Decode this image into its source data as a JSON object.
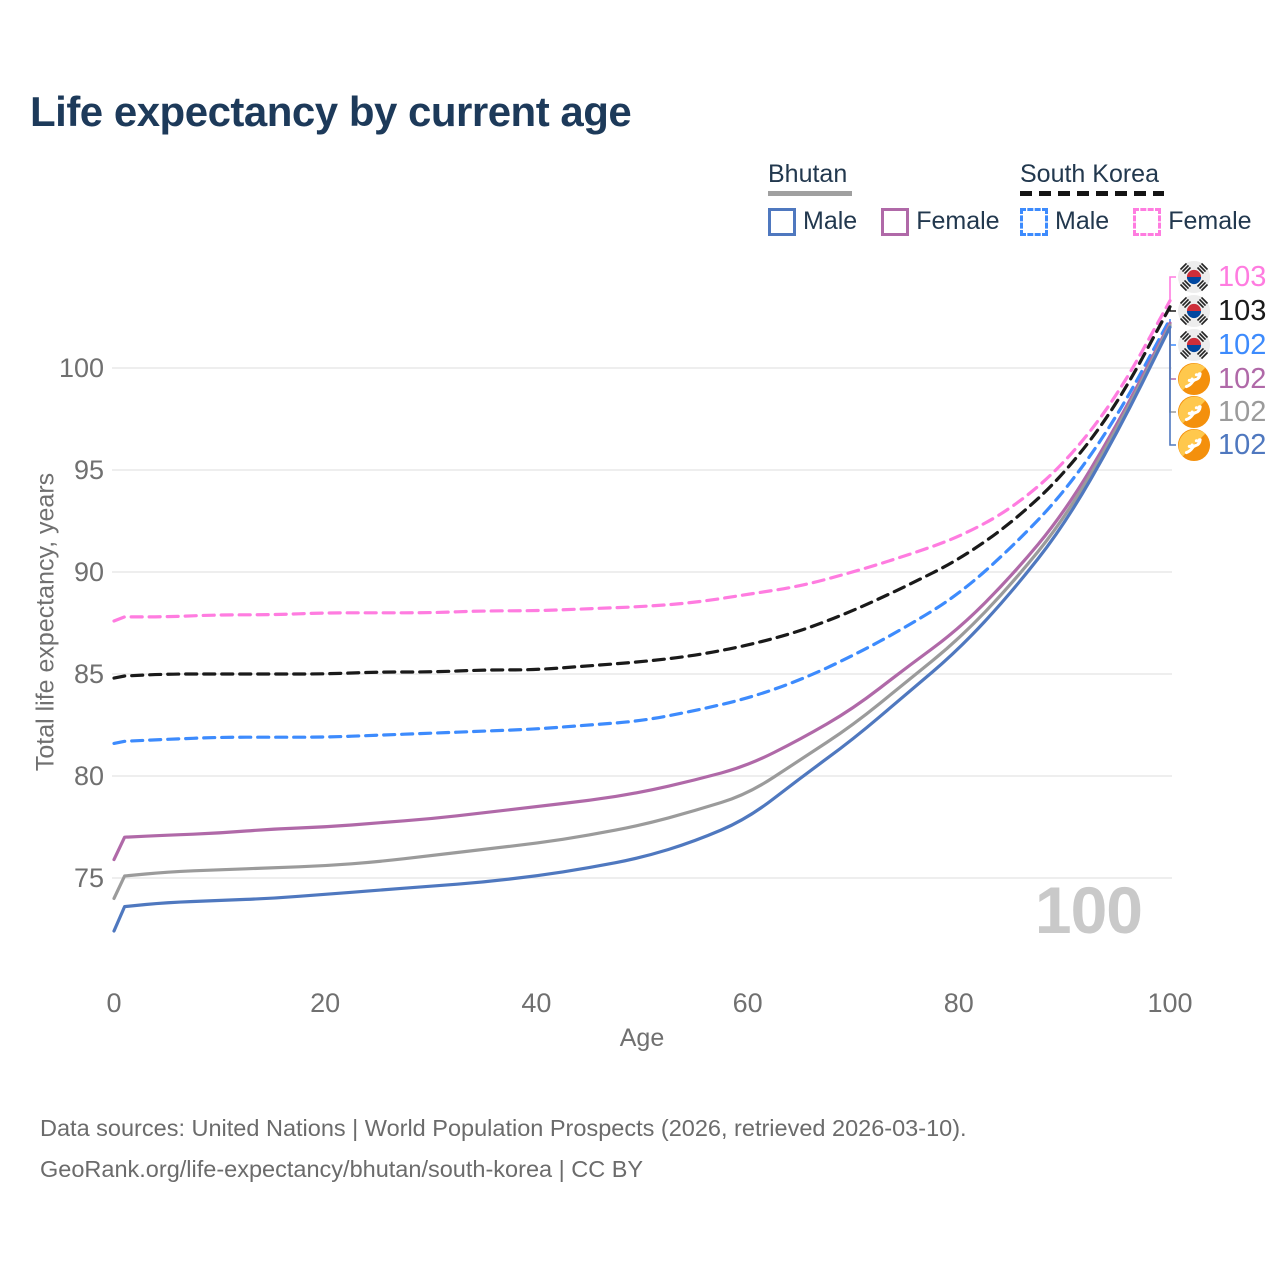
{
  "title": "Life expectancy by current age",
  "legend": {
    "groups": [
      {
        "title": "Bhutan",
        "line_style": "solid",
        "underline_color": "#a0a0a0",
        "items": [
          {
            "label": "Male",
            "color": "#4f78bf"
          },
          {
            "label": "Female",
            "color": "#b069a8"
          }
        ]
      },
      {
        "title": "South Korea",
        "line_style": "dashed",
        "underline_color": "#141414",
        "items": [
          {
            "label": "Male",
            "color": "#3d8bfd"
          },
          {
            "label": "Female",
            "color": "#ff7ce0"
          }
        ]
      }
    ]
  },
  "chart_data": {
    "type": "line",
    "title": "Life expectancy by current age",
    "xlabel": "Age",
    "ylabel": "Total life expectancy, years",
    "x_ticks": [
      0,
      20,
      40,
      60,
      80,
      100
    ],
    "y_ticks": [
      75,
      80,
      85,
      90,
      95,
      100
    ],
    "xlim": [
      0,
      100
    ],
    "ylim": [
      72,
      104
    ],
    "grid": "horizontal",
    "age_counter": "100",
    "ages": [
      0,
      1,
      5,
      10,
      15,
      20,
      25,
      30,
      35,
      40,
      45,
      50,
      55,
      60,
      65,
      70,
      75,
      80,
      85,
      90,
      95,
      100
    ],
    "series": [
      {
        "name": "South Korea Female",
        "country": "South Korea",
        "sex": "Female",
        "line_style": "dashed",
        "color": "#ff7ce0",
        "flag": "south-korea",
        "end_label": "103",
        "values": [
          87.6,
          87.8,
          87.8,
          87.9,
          87.9,
          88.0,
          88.0,
          88.0,
          88.1,
          88.1,
          88.2,
          88.3,
          88.5,
          88.9,
          89.3,
          90.0,
          90.8,
          91.7,
          93.1,
          95.3,
          98.6,
          103.3
        ]
      },
      {
        "name": "South Korea (both sexes)",
        "country": "South Korea",
        "sex": "All",
        "line_style": "dashed",
        "color": "#1a1a1a",
        "flag": "south-korea",
        "end_label": "103",
        "values": [
          84.8,
          84.9,
          85.0,
          85.0,
          85.0,
          85.0,
          85.1,
          85.1,
          85.2,
          85.2,
          85.4,
          85.6,
          85.9,
          86.4,
          87.1,
          88.1,
          89.3,
          90.6,
          92.4,
          94.8,
          98.2,
          103.0
        ]
      },
      {
        "name": "South Korea Male",
        "country": "South Korea",
        "sex": "Male",
        "line_style": "dashed",
        "color": "#3d8bfd",
        "flag": "south-korea",
        "end_label": "102",
        "values": [
          81.6,
          81.7,
          81.8,
          81.9,
          81.9,
          81.9,
          82.0,
          82.1,
          82.2,
          82.3,
          82.5,
          82.7,
          83.2,
          83.8,
          84.7,
          85.9,
          87.3,
          88.9,
          91.2,
          93.9,
          97.6,
          102.4
        ]
      },
      {
        "name": "Bhutan Female",
        "country": "Bhutan",
        "sex": "Female",
        "line_style": "solid",
        "color": "#b069a8",
        "flag": "bhutan",
        "end_label": "102",
        "values": [
          75.9,
          77.0,
          77.1,
          77.2,
          77.4,
          77.5,
          77.7,
          77.9,
          78.2,
          78.5,
          78.8,
          79.2,
          79.8,
          80.5,
          81.8,
          83.3,
          85.3,
          87.2,
          89.8,
          92.9,
          97.2,
          102.2
        ]
      },
      {
        "name": "Bhutan (both sexes)",
        "country": "Bhutan",
        "sex": "All",
        "line_style": "solid",
        "color": "#9b9b9b",
        "flag": "bhutan",
        "end_label": "102",
        "values": [
          74.0,
          75.1,
          75.3,
          75.4,
          75.5,
          75.6,
          75.8,
          76.1,
          76.4,
          76.7,
          77.1,
          77.6,
          78.3,
          79.1,
          80.8,
          82.5,
          84.6,
          86.7,
          89.4,
          92.6,
          97.0,
          102.1
        ]
      },
      {
        "name": "Bhutan Male",
        "country": "Bhutan",
        "sex": "Male",
        "line_style": "solid",
        "color": "#4f78bf",
        "flag": "bhutan",
        "end_label": "102",
        "values": [
          72.4,
          73.6,
          73.8,
          73.9,
          74.0,
          74.2,
          74.4,
          74.6,
          74.8,
          75.1,
          75.5,
          76.0,
          76.8,
          77.9,
          79.9,
          81.8,
          84.0,
          86.2,
          89.0,
          92.3,
          96.8,
          102.0
        ]
      }
    ]
  },
  "footer": {
    "line1": "Data sources: United Nations | World Population Prospects (2026, retrieved 2026-03-10).",
    "line2": "GeoRank.org/life-expectancy/bhutan/south-korea | CC BY"
  }
}
